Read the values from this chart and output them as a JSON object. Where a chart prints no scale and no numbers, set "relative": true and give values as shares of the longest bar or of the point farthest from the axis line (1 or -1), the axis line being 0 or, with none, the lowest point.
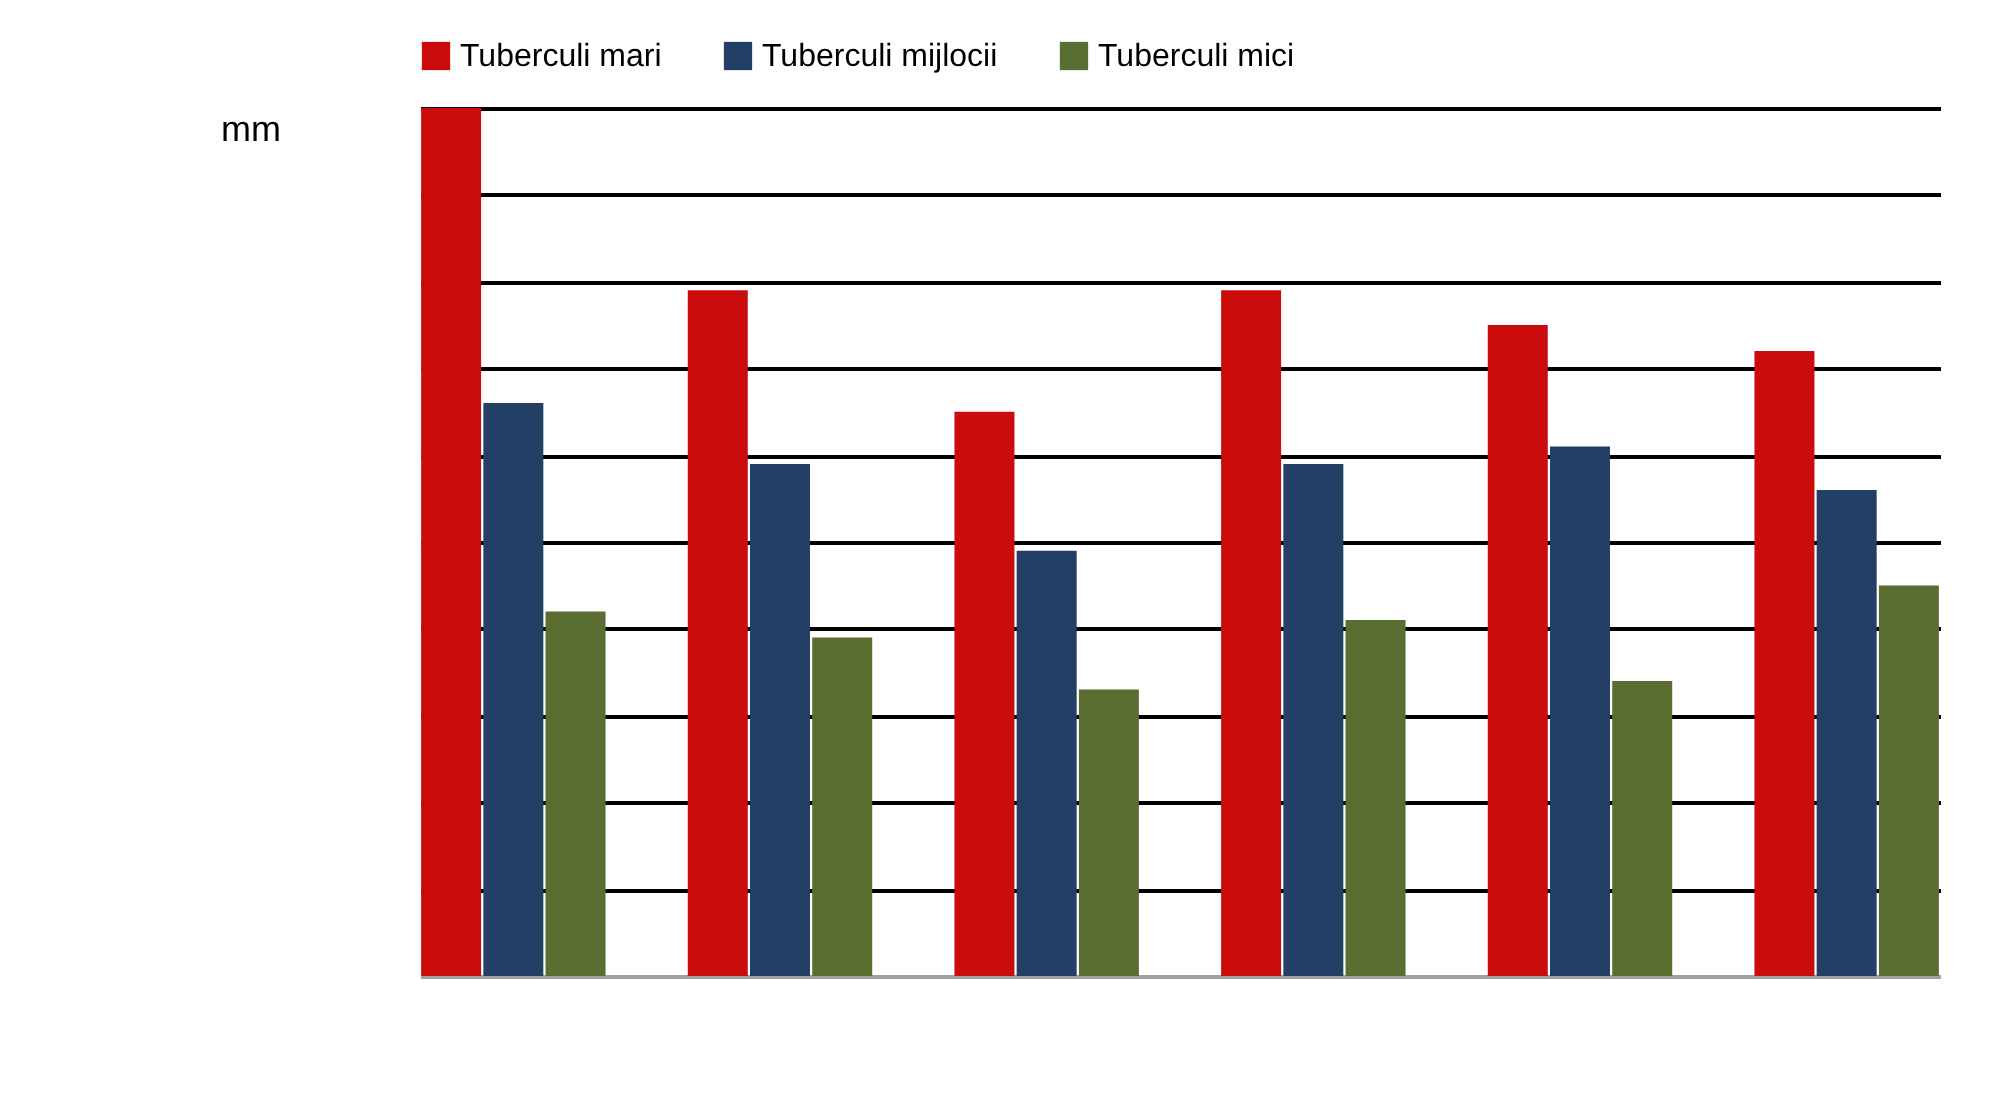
{
  "chart_data": {
    "type": "bar",
    "ylabel": "mm",
    "relative": true,
    "grid": "y",
    "legend": "top",
    "categories": [
      null,
      null,
      null,
      null,
      null,
      null
    ],
    "series": [
      {
        "name": "Tuberculi mari",
        "color": "#cc0c0c",
        "values": [
          1,
          0.79,
          0.65,
          0.79,
          0.75,
          0.72
        ]
      },
      {
        "name": "Tuberculi mijlocii",
        "color": "#243f66",
        "values": [
          0.66,
          0.59,
          0.49,
          0.59,
          0.61,
          0.56
        ]
      },
      {
        "name": "Tuberculi mici",
        "color": "#5a6e32",
        "values": [
          0.42,
          0.39,
          0.33,
          0.41,
          0.34,
          0.45
        ]
      }
    ]
  }
}
